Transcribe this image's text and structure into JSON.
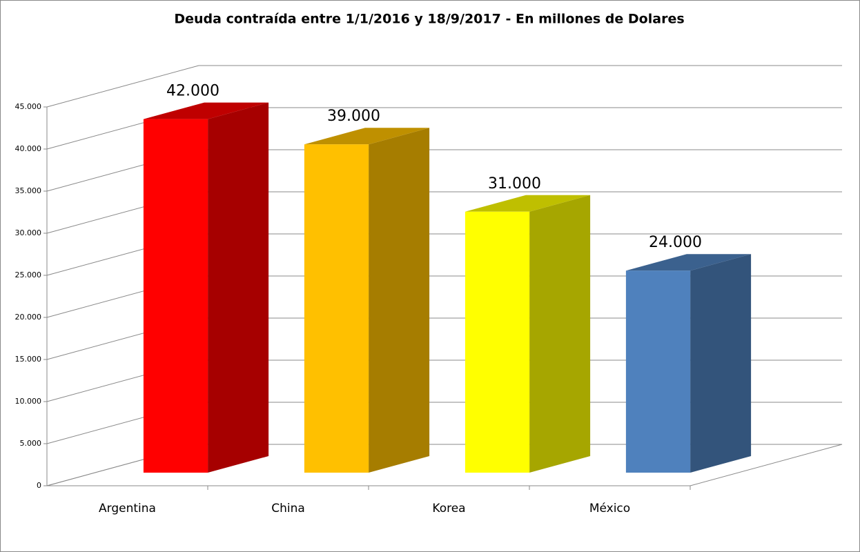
{
  "chart_data": {
    "type": "bar3d",
    "title": "Deuda contraída entre 1/1/2016 y 18/9/2017 - En millones de Dolares",
    "categories": [
      "Argentina",
      "China",
      "Korea",
      "México"
    ],
    "values": [
      42000,
      39000,
      31000,
      24000
    ],
    "value_labels": [
      "42.000",
      "39.000",
      "31.000",
      "24.000"
    ],
    "colors": [
      "#ff0000",
      "#ffc000",
      "#ffff00",
      "#4f81bd"
    ],
    "ylim": [
      0,
      45000
    ],
    "yticks": [
      0,
      {
        "value": 5000,
        "label": "5.000"
      },
      {
        "value": 10000,
        "label": "10.000"
      },
      {
        "value": 15000,
        "label": "15.000"
      },
      {
        "value": 20000,
        "label": "20.000"
      },
      {
        "value": 25000,
        "label": "25.000"
      },
      {
        "value": 30000,
        "label": "30.000"
      },
      {
        "value": 35000,
        "label": "35.000"
      },
      {
        "value": 40000,
        "label": "40.000"
      },
      {
        "value": 45000,
        "label": "45.000"
      }
    ],
    "grid": true
  }
}
